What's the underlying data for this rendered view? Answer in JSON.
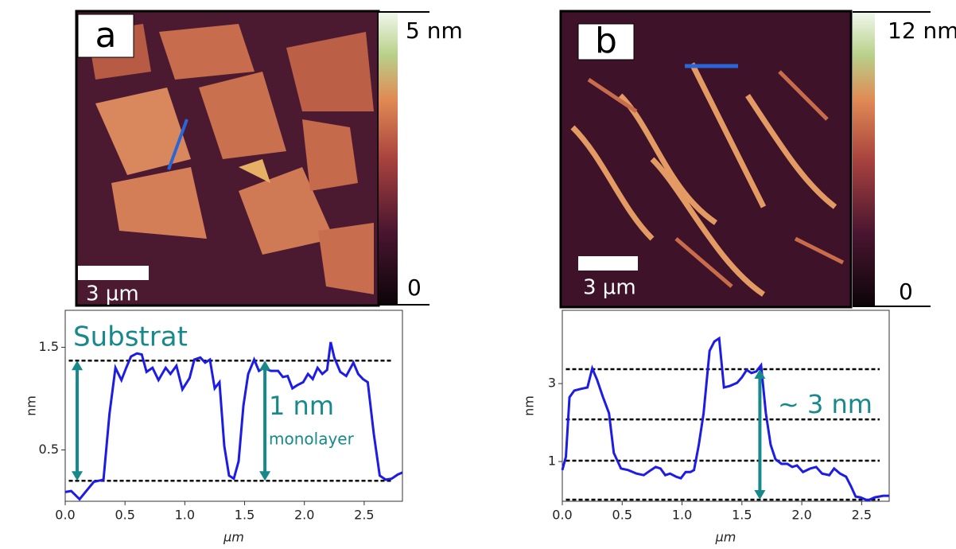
{
  "panels": [
    {
      "label": "a",
      "scale_bar": "3 µm",
      "colorbar_max": "5 nm",
      "colorbar_min": "0"
    },
    {
      "label": "b",
      "scale_bar": "3 µm",
      "colorbar_max": "12 nm",
      "colorbar_min": "0"
    }
  ],
  "chart_data": [
    {
      "type": "line",
      "x_label": "μm",
      "y_label": "nm",
      "color": "#1c1ce6",
      "annotation_color": "#17898a",
      "annotations": [
        "Substrat",
        "1 nm",
        "monolayer"
      ],
      "xlim": [
        0,
        2.82
      ],
      "ylim": [
        0,
        1.86
      ],
      "xticks": [
        {
          "value": 0,
          "label": "0.0"
        },
        0.5,
        {
          "value": 1,
          "label": "1.0"
        },
        1.5,
        {
          "value": 2,
          "label": "2.0"
        },
        2.5
      ],
      "yticks": [
        0.5,
        1.5
      ],
      "hlines": [
        1.37,
        0.2
      ],
      "arrows": [
        {
          "x": 0.1,
          "from": 0.2,
          "to": 1.37
        },
        {
          "x": 1.67,
          "from": 0.2,
          "to": 1.37
        }
      ],
      "x": [
        0,
        0.05,
        0.12,
        0.19,
        0.24,
        0.32,
        0.37,
        0.42,
        0.47,
        0.51,
        0.55,
        0.6,
        0.64,
        0.68,
        0.73,
        0.78,
        0.84,
        0.88,
        0.93,
        0.98,
        1.04,
        1.08,
        1.13,
        1.17,
        1.21,
        1.25,
        1.29,
        1.33,
        1.37,
        1.41,
        1.45,
        1.49,
        1.53,
        1.58,
        1.62,
        1.66,
        1.72,
        1.78,
        1.82,
        1.86,
        1.9,
        1.94,
        1.99,
        2.03,
        2.07,
        2.11,
        2.15,
        2.19,
        2.22,
        2.25,
        2.3,
        2.35,
        2.41,
        2.45,
        2.49,
        2.53,
        2.58,
        2.63,
        2.68,
        2.73,
        2.78,
        2.82
      ],
      "values": [
        0.09,
        0.1,
        0.02,
        0.12,
        0.19,
        0.21,
        0.85,
        1.3,
        1.18,
        1.3,
        1.41,
        1.44,
        1.43,
        1.26,
        1.3,
        1.18,
        1.3,
        1.24,
        1.32,
        1.09,
        1.2,
        1.38,
        1.4,
        1.35,
        1.38,
        1.1,
        1.16,
        0.54,
        0.25,
        0.22,
        0.39,
        0.93,
        1.24,
        1.38,
        1.27,
        1.3,
        1.27,
        1.27,
        1.21,
        1.22,
        1.1,
        1.13,
        1.16,
        1.24,
        1.19,
        1.3,
        1.24,
        1.28,
        1.55,
        1.4,
        1.26,
        1.22,
        1.35,
        1.24,
        1.19,
        1.16,
        0.66,
        0.25,
        0.21,
        0.22,
        0.26,
        0.28
      ]
    },
    {
      "type": "line",
      "x_label": "μm",
      "y_label": "nm",
      "color": "#1c1ce6",
      "annotation_color": "#17898a",
      "annotations": [
        "∼ 3 nm"
      ],
      "xlim": [
        0,
        2.73
      ],
      "ylim": [
        -0.02,
        4.88
      ],
      "xticks": [
        {
          "value": 0,
          "label": "0.0"
        },
        0.5,
        {
          "value": 1,
          "label": "1.0"
        },
        1.5,
        {
          "value": 2,
          "label": "2.0"
        },
        2.5
      ],
      "yticks": [
        1,
        3
      ],
      "hlines": [
        3.37,
        2.08,
        1.02,
        0.02
      ],
      "arrows": [
        {
          "x": 1.65,
          "from": 0.02,
          "to": 3.37
        }
      ],
      "x": [
        0,
        0.03,
        0.06,
        0.1,
        0.15,
        0.21,
        0.25,
        0.29,
        0.34,
        0.39,
        0.43,
        0.49,
        0.55,
        0.62,
        0.68,
        0.74,
        0.78,
        0.82,
        0.86,
        0.9,
        0.95,
        0.99,
        1.03,
        1.07,
        1.1,
        1.14,
        1.18,
        1.23,
        1.27,
        1.31,
        1.35,
        1.4,
        1.46,
        1.5,
        1.54,
        1.58,
        1.62,
        1.66,
        1.7,
        1.74,
        1.78,
        1.83,
        1.88,
        1.92,
        1.96,
        2.01,
        2.07,
        2.12,
        2.17,
        2.23,
        2.27,
        2.32,
        2.37,
        2.41,
        2.45,
        2.49,
        2.55,
        2.61,
        2.68,
        2.73
      ],
      "values": [
        0.78,
        1.12,
        2.65,
        2.82,
        2.86,
        2.9,
        3.39,
        3.1,
        2.65,
        2.24,
        1.22,
        0.82,
        0.78,
        0.69,
        0.65,
        0.78,
        0.86,
        0.82,
        0.65,
        0.69,
        0.61,
        0.57,
        0.73,
        0.73,
        0.78,
        1.43,
        2.24,
        3.84,
        4.08,
        4.16,
        2.9,
        2.94,
        3.02,
        3.16,
        3.35,
        3.27,
        3.31,
        3.47,
        2.24,
        1.43,
        1.06,
        0.94,
        0.94,
        0.86,
        0.9,
        0.73,
        0.82,
        0.86,
        0.69,
        0.65,
        0.82,
        0.69,
        0.61,
        0.37,
        0.1,
        0.08,
        0,
        0.08,
        0.12,
        0.12
      ]
    }
  ]
}
